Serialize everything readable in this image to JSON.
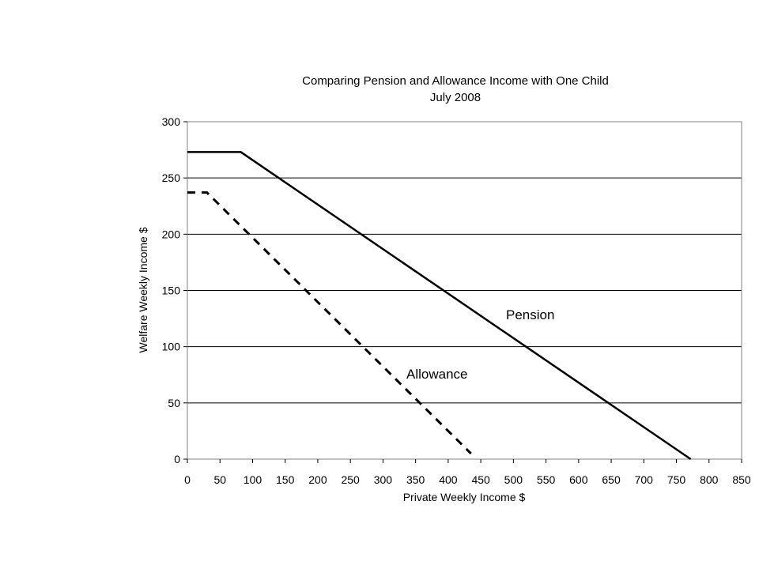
{
  "chart_data": {
    "type": "line",
    "title": "Comparing Pension and Allowance Income with One Child",
    "subtitle": "July 2008",
    "xlabel": "Private Weekly Income $",
    "ylabel": "Welfare Weekly Income $",
    "xlim": [
      0,
      850
    ],
    "ylim": [
      0,
      300
    ],
    "x_ticks": [
      "0",
      "50",
      "100",
      "150",
      "200",
      "250",
      "300",
      "350",
      "400",
      "450",
      "500",
      "550",
      "600",
      "650",
      "700",
      "750",
      "800",
      "850"
    ],
    "y_ticks": [
      "0",
      "50",
      "100",
      "150",
      "200",
      "250",
      "300"
    ],
    "grid": "horizontal",
    "legend": "none",
    "series": [
      {
        "name": "Pension",
        "style": "solid",
        "color": "#000000",
        "x": [
          0,
          82,
          772
        ],
        "y": [
          273,
          273,
          0
        ]
      },
      {
        "name": "Allowance",
        "style": "dashed",
        "color": "#000000",
        "x": [
          0,
          30,
          435
        ],
        "y": [
          237,
          237,
          5
        ]
      }
    ],
    "annotations": [
      {
        "text": "Pension",
        "series": 0
      },
      {
        "text": "Allowance",
        "series": 1
      }
    ]
  }
}
